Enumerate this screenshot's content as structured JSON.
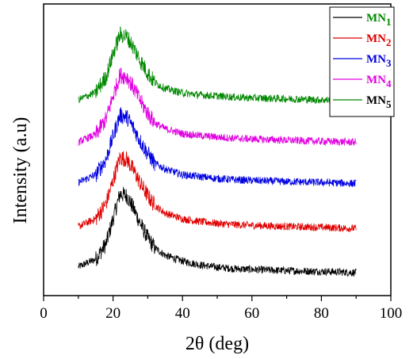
{
  "chart_data": {
    "type": "line",
    "xlabel": "2θ (deg)",
    "ylabel": "Intensity (a.u)",
    "xlim": [
      0,
      100
    ],
    "x_ticks": [
      0,
      20,
      40,
      60,
      80,
      100
    ],
    "y_ticks_shown": false,
    "grid": false,
    "legend_position": "top-right",
    "x": [
      10,
      15,
      18,
      20,
      22,
      24,
      26,
      28,
      30,
      32,
      35,
      40,
      45,
      50,
      55,
      60,
      70,
      80,
      90
    ],
    "series": [
      {
        "name": "MN",
        "subscript": "1",
        "color": "#000000",
        "values": [
          0.15,
          0.35,
          0.75,
          1.4,
          2.05,
          2.0,
          1.65,
          1.25,
          0.9,
          0.65,
          0.45,
          0.3,
          0.2,
          0.14,
          0.1,
          0.08,
          0.05,
          0.03,
          0.0
        ]
      },
      {
        "name": "MN",
        "subscript": "2",
        "color": "#e00000",
        "values": [
          1.2,
          1.4,
          1.8,
          2.4,
          3.0,
          2.95,
          2.65,
          2.3,
          2.0,
          1.75,
          1.55,
          1.4,
          1.33,
          1.28,
          1.25,
          1.23,
          1.2,
          1.18,
          1.15
        ]
      },
      {
        "name": "MN",
        "subscript": "3",
        "color": "#0000e0",
        "values": [
          2.35,
          2.55,
          2.95,
          3.55,
          4.1,
          4.05,
          3.75,
          3.4,
          3.1,
          2.85,
          2.7,
          2.55,
          2.5,
          2.45,
          2.42,
          2.4,
          2.37,
          2.35,
          2.32
        ]
      },
      {
        "name": "MN",
        "subscript": "4",
        "color": "#e000e0",
        "values": [
          3.4,
          3.6,
          4.0,
          4.6,
          5.15,
          5.1,
          4.8,
          4.45,
          4.15,
          3.9,
          3.75,
          3.62,
          3.57,
          3.53,
          3.5,
          3.48,
          3.45,
          3.42,
          3.4
        ]
      },
      {
        "name": "MN",
        "subscript": "5",
        "color": "#008800",
        "values": [
          4.5,
          4.7,
          5.1,
          5.7,
          6.2,
          6.15,
          5.85,
          5.5,
          5.2,
          4.95,
          4.8,
          4.68,
          4.63,
          4.6,
          4.57,
          4.55,
          4.53,
          4.5,
          4.48
        ]
      }
    ]
  },
  "legend": {
    "label_colors": [
      "#008800",
      "#e00000",
      "#0000e0",
      "#e000e0",
      "#000000"
    ]
  }
}
